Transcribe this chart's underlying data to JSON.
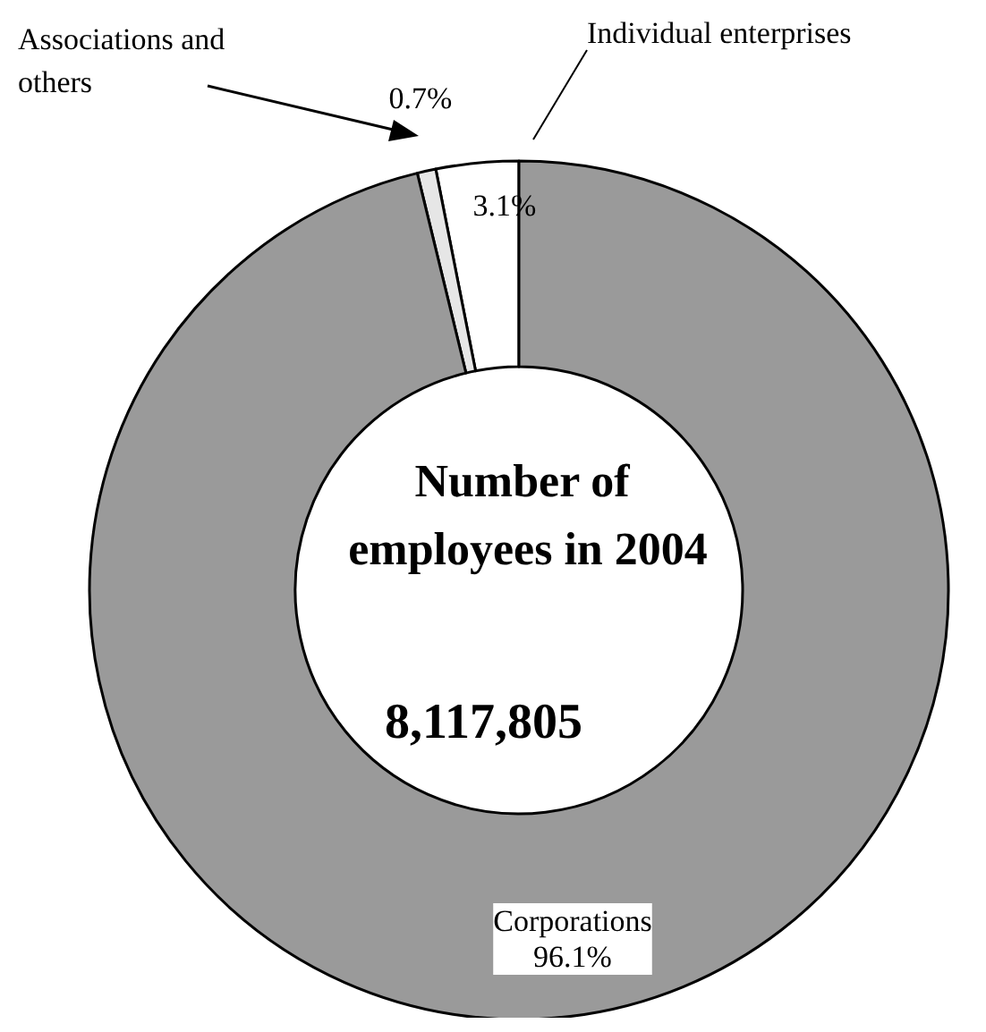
{
  "chart_data": {
    "type": "donut",
    "title": "Number of employees in 2004",
    "annotations": [
      "8,117,805"
    ],
    "categories": [
      "Individual enterprises",
      "Associations and others",
      "Corporations"
    ],
    "values": [
      3.1,
      0.7,
      96.1
    ],
    "colors": [
      "#ffffff",
      "#e6e6e6",
      "#9a9a9a"
    ],
    "value_labels": [
      "3.1%",
      "0.7%",
      "96.1%"
    ],
    "legend": false
  }
}
